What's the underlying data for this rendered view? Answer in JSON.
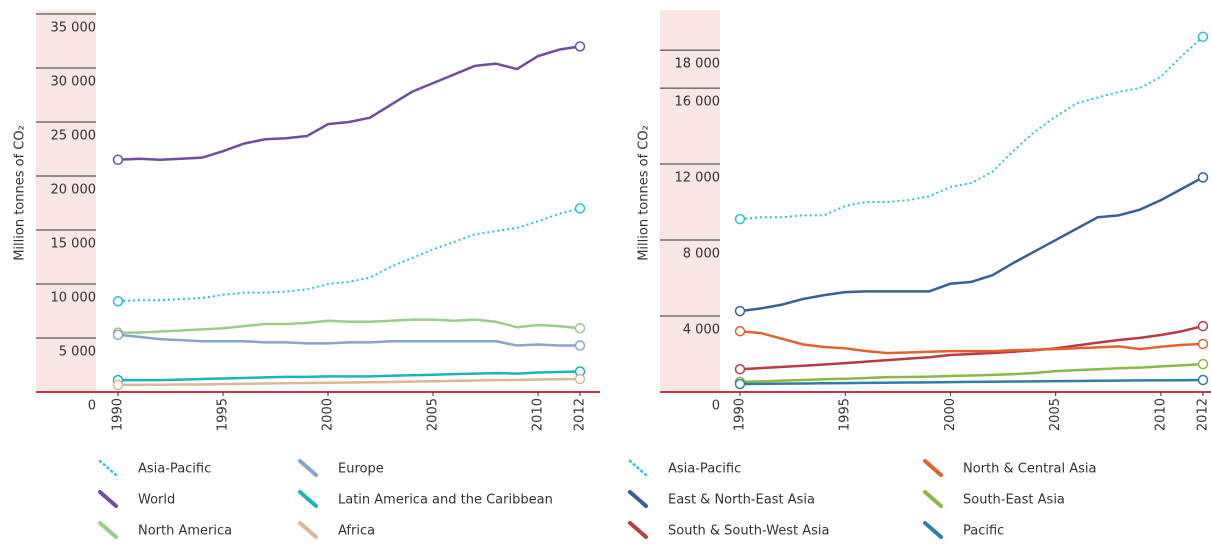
{
  "chart_data": [
    {
      "type": "line",
      "y_label": "Million tonnes of CO₂",
      "x": [
        1990,
        1991,
        1992,
        1993,
        1994,
        1995,
        1996,
        1997,
        1998,
        1999,
        2000,
        2001,
        2002,
        2003,
        2004,
        2005,
        2006,
        2007,
        2008,
        2009,
        2010,
        2011,
        2012
      ],
      "xlim": [
        1990,
        2012
      ],
      "xticks": [
        1990,
        1995,
        2000,
        2005,
        2010,
        2012
      ],
      "ylim": [
        0,
        35000
      ],
      "yticks": [
        0,
        {
          "value": 5000,
          "label": "5 000"
        },
        {
          "value": 10000,
          "label": "10 000"
        },
        {
          "value": 15000,
          "label": "15 000"
        },
        {
          "value": 20000,
          "label": "20 000"
        },
        {
          "value": 25000,
          "label": "25 000"
        },
        {
          "value": 30000,
          "label": "30 000"
        },
        {
          "value": 35000,
          "label": "35 000"
        }
      ],
      "series": [
        {
          "name": "Asia-Pacific",
          "color": "#29c0e0",
          "dotted": true,
          "values": [
            8400,
            8500,
            8500,
            8600,
            8700,
            9000,
            9200,
            9200,
            9300,
            9500,
            10000,
            10200,
            10600,
            11600,
            12400,
            13200,
            13900,
            14600,
            14900,
            15200,
            15800,
            16500,
            17000
          ]
        },
        {
          "name": "World",
          "color": "#6e4f9e",
          "values": [
            21500,
            21600,
            21500,
            21600,
            21700,
            22300,
            23000,
            23400,
            23500,
            23700,
            24800,
            25000,
            25400,
            26600,
            27800,
            28600,
            29400,
            30200,
            30400,
            29900,
            31100,
            31700,
            32000
          ]
        },
        {
          "name": "North America",
          "color": "#9ccc8b",
          "values": [
            5500,
            5500,
            5600,
            5700,
            5800,
            5900,
            6100,
            6300,
            6300,
            6400,
            6600,
            6500,
            6500,
            6600,
            6700,
            6700,
            6600,
            6700,
            6500,
            6000,
            6200,
            6100,
            5900
          ]
        },
        {
          "name": "Europe",
          "color": "#8ba4cc",
          "values": [
            5300,
            5100,
            4900,
            4800,
            4700,
            4700,
            4700,
            4600,
            4600,
            4500,
            4500,
            4600,
            4600,
            4700,
            4700,
            4700,
            4700,
            4700,
            4700,
            4300,
            4400,
            4300,
            4300
          ]
        },
        {
          "name": "Latin America and the Caribbean",
          "color": "#1ab5b8",
          "values": [
            1100,
            1100,
            1100,
            1150,
            1200,
            1250,
            1300,
            1350,
            1400,
            1400,
            1450,
            1450,
            1450,
            1500,
            1550,
            1600,
            1650,
            1700,
            1750,
            1700,
            1800,
            1850,
            1900
          ]
        },
        {
          "name": "Africa",
          "color": "#d9b896",
          "values": [
            650,
            660,
            670,
            690,
            700,
            730,
            760,
            790,
            810,
            830,
            860,
            880,
            900,
            930,
            970,
            1000,
            1030,
            1060,
            1100,
            1120,
            1160,
            1180,
            1200
          ]
        }
      ]
    },
    {
      "type": "line",
      "y_label": "Million tonnes of CO₂",
      "x": [
        1990,
        1991,
        1992,
        1993,
        1994,
        1995,
        1996,
        1997,
        1998,
        1999,
        2000,
        2001,
        2002,
        2003,
        2004,
        2005,
        2006,
        2007,
        2008,
        2009,
        2010,
        2011,
        2012
      ],
      "xlim": [
        1990,
        2012
      ],
      "xticks": [
        1990,
        1995,
        2000,
        2005,
        2010,
        2012
      ],
      "ylim": [
        0,
        19900
      ],
      "yticks": [
        0,
        {
          "value": 4000,
          "label": "4 000"
        },
        {
          "value": 8000,
          "label": "8 000"
        },
        {
          "value": 12000,
          "label": "12 000"
        },
        {
          "value": 16000,
          "label": "16 000"
        },
        {
          "value": 18000,
          "label": "18 000"
        }
      ],
      "series": [
        {
          "name": "Asia-Pacific",
          "color": "#29c0e0",
          "dotted": true,
          "values": [
            9100,
            9200,
            9200,
            9300,
            9300,
            9800,
            10000,
            10000,
            10100,
            10300,
            10800,
            11000,
            11600,
            12700,
            13700,
            14500,
            15200,
            15500,
            15800,
            16000,
            16600,
            17700,
            18700
          ]
        },
        {
          "name": "East & North-East Asia",
          "color": "#3a5f95",
          "values": [
            4260,
            4400,
            4600,
            4900,
            5100,
            5260,
            5300,
            5300,
            5300,
            5300,
            5700,
            5800,
            6150,
            6800,
            7400,
            8000,
            8600,
            9200,
            9300,
            9600,
            10100,
            10700,
            11300
          ]
        },
        {
          "name": "South & South-West Asia",
          "color": "#b73c45",
          "values": [
            1200,
            1260,
            1320,
            1380,
            1450,
            1520,
            1600,
            1680,
            1760,
            1830,
            1950,
            2000,
            2050,
            2120,
            2200,
            2300,
            2450,
            2600,
            2740,
            2850,
            3000,
            3200,
            3470
          ]
        },
        {
          "name": "North & Central Asia",
          "color": "#e0622d",
          "values": [
            3200,
            3100,
            2800,
            2500,
            2370,
            2300,
            2150,
            2050,
            2080,
            2120,
            2150,
            2150,
            2150,
            2200,
            2230,
            2260,
            2300,
            2350,
            2400,
            2260,
            2380,
            2480,
            2530
          ]
        },
        {
          "name": "South-East Asia",
          "color": "#8ab84a",
          "values": [
            530,
            560,
            600,
            630,
            670,
            700,
            740,
            780,
            790,
            810,
            840,
            870,
            900,
            940,
            1000,
            1100,
            1150,
            1200,
            1250,
            1280,
            1350,
            1400,
            1470
          ]
        },
        {
          "name": "Pacific",
          "color": "#2e7fa0",
          "values": [
            420,
            430,
            440,
            450,
            460,
            470,
            480,
            490,
            500,
            510,
            520,
            530,
            540,
            550,
            560,
            570,
            580,
            590,
            600,
            610,
            615,
            620,
            630
          ]
        }
      ]
    }
  ]
}
